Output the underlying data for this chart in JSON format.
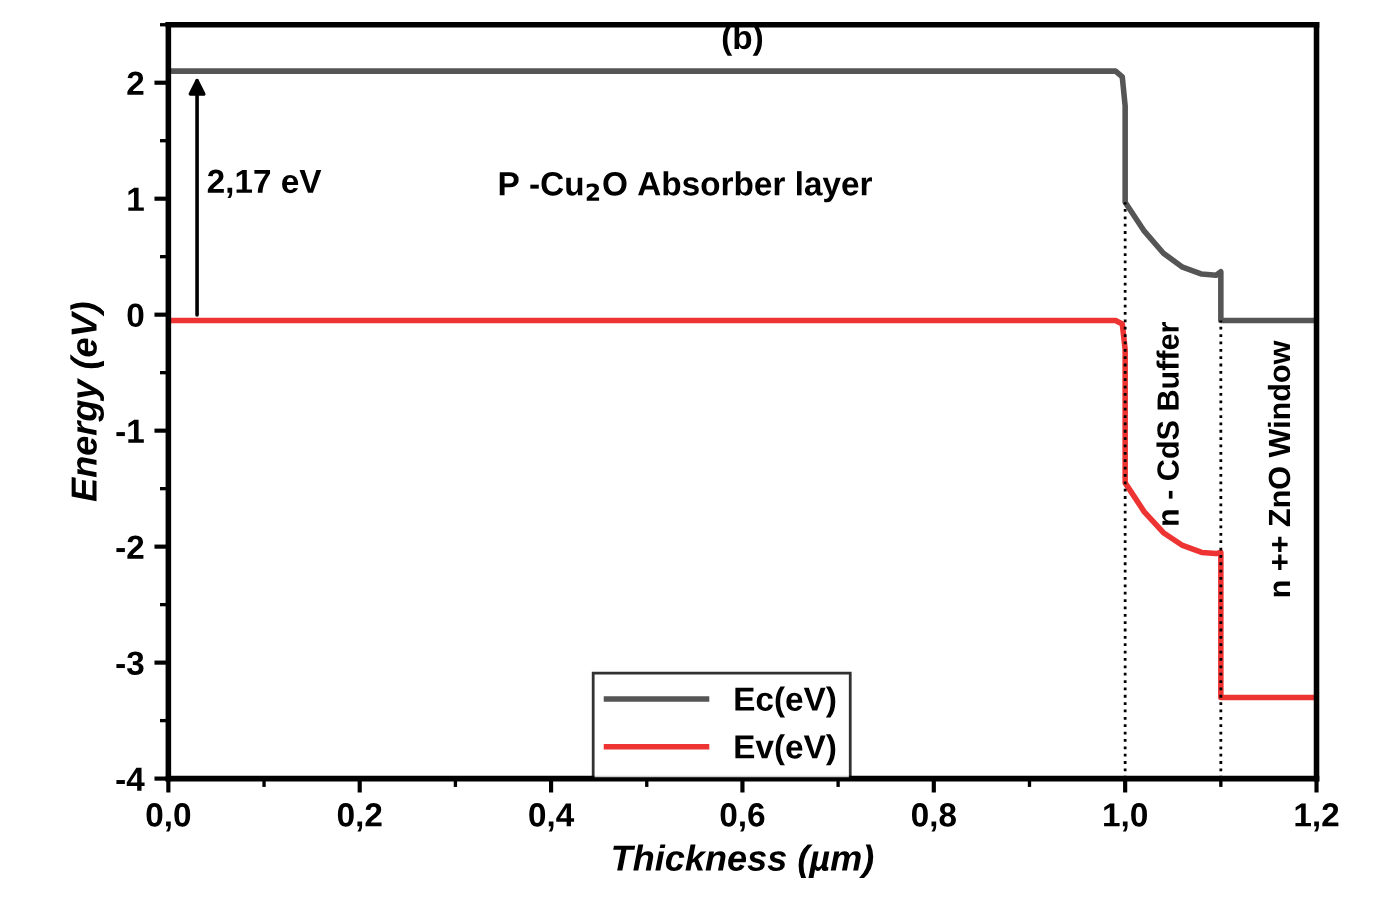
{
  "chart_data": {
    "type": "line",
    "title": "(b)",
    "xlabel": "Thickness (µm)",
    "ylabel": "Energy (eV)",
    "series": [
      {
        "name": "Ec(eV)",
        "color": "#555555",
        "x": [
          0,
          0.99,
          0.997,
          1.0,
          1.0,
          1.02,
          1.04,
          1.06,
          1.08,
          1.095,
          1.1,
          1.1,
          1.2
        ],
        "values": [
          2.1,
          2.1,
          2.05,
          1.8,
          0.97,
          0.72,
          0.53,
          0.41,
          0.35,
          0.34,
          0.37,
          -0.05,
          -0.05
        ]
      },
      {
        "name": "Ev(eV)",
        "color": "#ee3333",
        "x": [
          0,
          0.99,
          0.997,
          1.0,
          1.0,
          1.02,
          1.04,
          1.06,
          1.08,
          1.095,
          1.1,
          1.1,
          1.2
        ],
        "values": [
          -0.05,
          -0.05,
          -0.08,
          -0.3,
          -1.45,
          -1.7,
          -1.88,
          -1.99,
          -2.05,
          -2.06,
          -2.05,
          -3.3,
          -3.3
        ]
      }
    ],
    "annotations": [
      {
        "text": "2,17 eV",
        "x": 0.03,
        "y": 2.1
      },
      "P -Cu$_{2}$O Absorber layer",
      "n - CdS Buffer",
      "n ++ ZnO Window"
    ],
    "ref_lines": [
      {
        "axis": "x",
        "value": 1.0,
        "line_style": "dotted",
        "color": "#000000"
      },
      {
        "axis": "x",
        "value": 1.1,
        "line_style": "dotted",
        "color": "#000000"
      }
    ],
    "xlim": [
      0,
      1.2
    ],
    "ylim": [
      -4,
      2.5
    ],
    "xticks": [
      {
        "value": 0,
        "label": "0,0"
      },
      {
        "value": 0.2,
        "label": "0,2"
      },
      {
        "value": 0.4,
        "label": "0,4"
      },
      {
        "value": 0.6,
        "label": "0,6"
      },
      {
        "value": 0.8,
        "label": "0,8"
      },
      {
        "value": 1.0,
        "label": "1,0"
      },
      {
        "value": 1.2,
        "label": "1,2"
      }
    ],
    "yticks": [
      -4,
      -3,
      -2,
      -1,
      0,
      1,
      2
    ],
    "grid": false,
    "legend": "bottom",
    "marker": "none",
    "line_style": "solid"
  }
}
